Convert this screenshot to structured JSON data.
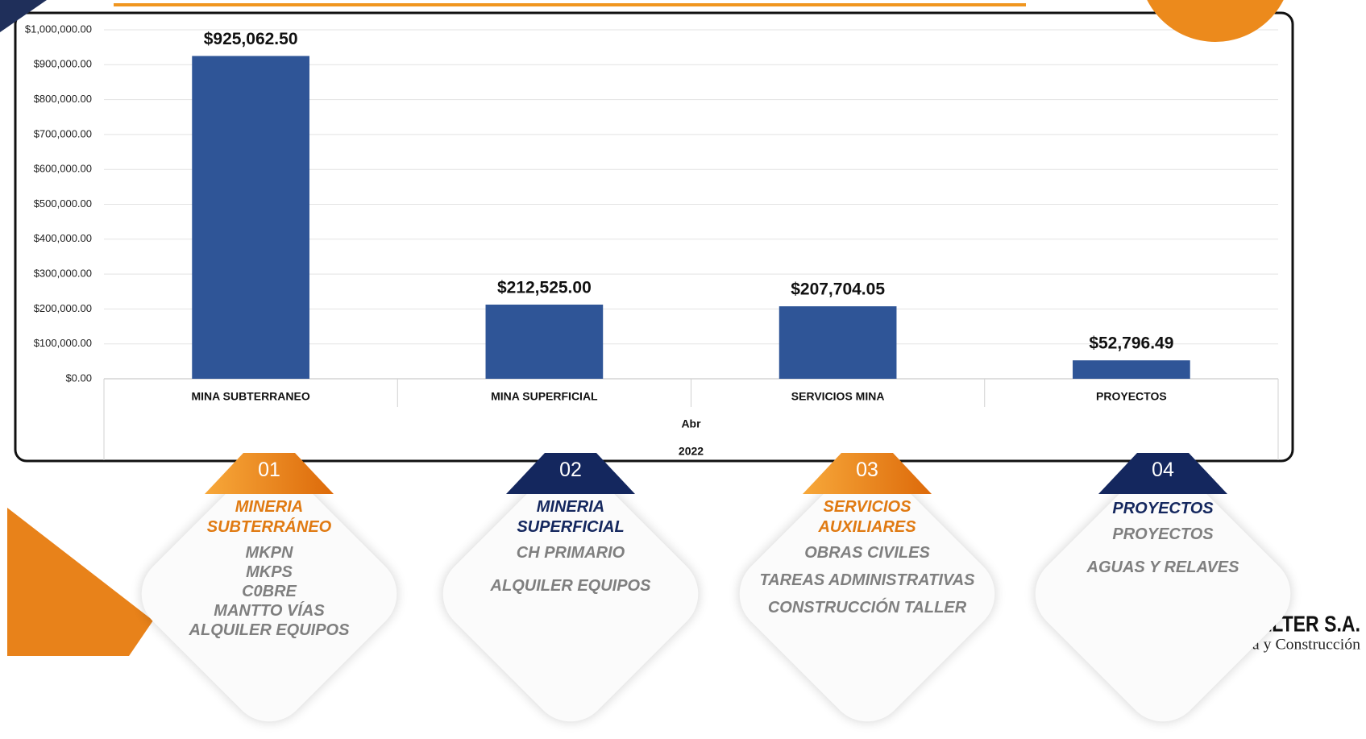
{
  "chart_data": {
    "type": "bar",
    "categories": [
      "MINA SUBTERRANEO",
      "MINA SUPERFICIAL",
      "SERVICIOS MINA",
      "PROYECTOS"
    ],
    "values": [
      925062.5,
      212525.0,
      207704.05,
      52796.49
    ],
    "value_labels": [
      "$925,062.50",
      "$212,525.00",
      "$207,704.05",
      "$52,796.49"
    ],
    "color": "#2f5597",
    "group_labels": [
      "Abr",
      "2022"
    ],
    "ylim": [
      0,
      1000000
    ],
    "yticks": [
      {
        "value": 0,
        "label": "$0.00"
      },
      {
        "value": 100000,
        "label": "$100,000.00"
      },
      {
        "value": 200000,
        "label": "$200,000.00"
      },
      {
        "value": 300000,
        "label": "$300,000.00"
      },
      {
        "value": 400000,
        "label": "$400,000.00"
      },
      {
        "value": 500000,
        "label": "$500,000.00"
      },
      {
        "value": 600000,
        "label": "$600,000.00"
      },
      {
        "value": 700000,
        "label": "$700,000.00"
      },
      {
        "value": 800000,
        "label": "$800,000.00"
      },
      {
        "value": 900000,
        "label": "$900,000.00"
      },
      {
        "value": 1000000,
        "label": "$1,000,000.00"
      }
    ],
    "grid": true
  },
  "cards": [
    {
      "number": "01",
      "title": [
        "MINERIA",
        "SUBTERRÁNEO"
      ],
      "items": [
        "MKPN",
        "MKPS",
        "C0BRE",
        "MANTTO VÍAS",
        "ALQUILER EQUIPOS"
      ]
    },
    {
      "number": "02",
      "title": [
        "MINERIA",
        "SUPERFICIAL"
      ],
      "items": [
        "CH PRIMARIO",
        "ALQUILER EQUIPOS"
      ]
    },
    {
      "number": "03",
      "title": [
        "SERVICIOS",
        "AUXILIARES"
      ],
      "items": [
        "OBRAS CIVILES",
        "TAREAS ADMINISTRATIVAS",
        "CONSTRUCCIÓN TALLER"
      ]
    },
    {
      "number": "04",
      "title": [
        "PROYECTOS"
      ],
      "items": [
        "PROYECTOS",
        "AGUAS Y RELAVES"
      ]
    }
  ],
  "logo": {
    "name": "E. SMELTER S.A.",
    "tagline": "Minería y Construcción"
  }
}
